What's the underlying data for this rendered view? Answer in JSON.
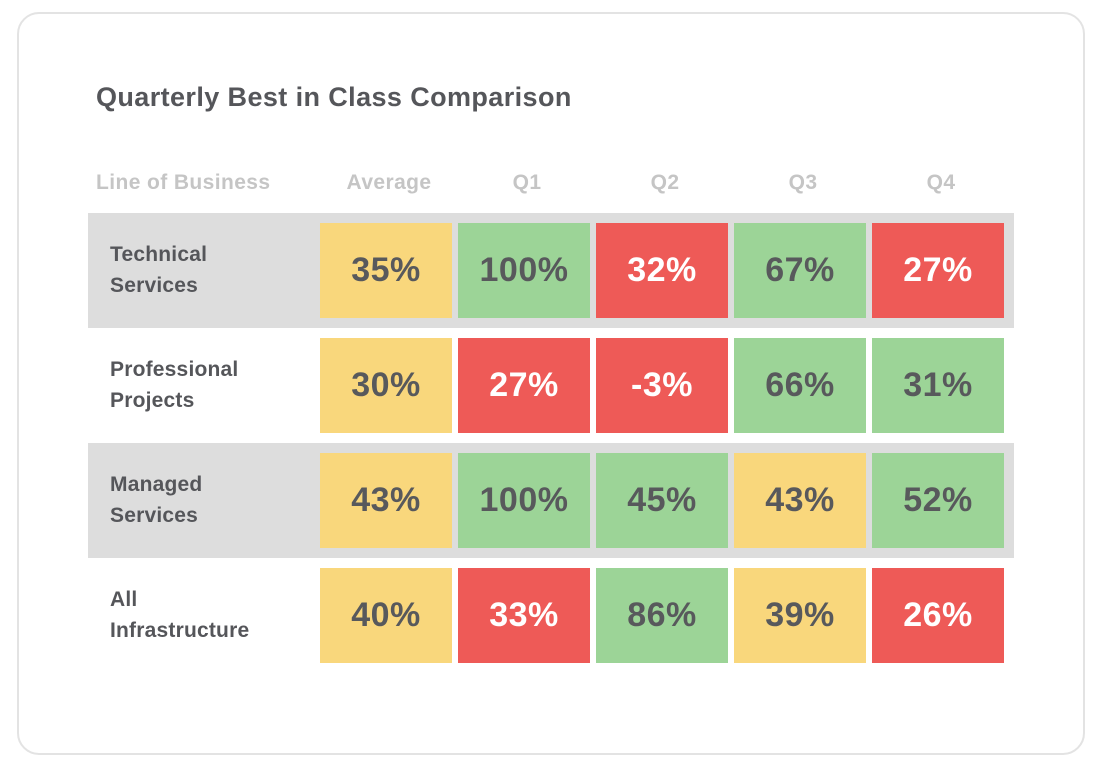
{
  "palette": {
    "yellow": {
      "bg": "#F9D77C",
      "text": "#58595C"
    },
    "green": {
      "bg": "#9CD497",
      "text": "#58595C"
    },
    "red": {
      "bg": "#EE5A57",
      "text": "#FFFFFF"
    },
    "stripe_bg": "#DDDDDD",
    "card_border": "#E3E3E3",
    "title_text": "#55565A",
    "header_text": "#C5C5C5"
  },
  "card": {
    "title": "Quarterly Best in Class Comparison"
  },
  "table": {
    "columns": [
      "Line of Business",
      "Average",
      "Q1",
      "Q2",
      "Q3",
      "Q4"
    ],
    "rows": [
      {
        "label": "Technical\nServices",
        "striped": true,
        "cells": [
          {
            "value": "35%",
            "color": "yellow"
          },
          {
            "value": "100%",
            "color": "green"
          },
          {
            "value": "32%",
            "color": "red"
          },
          {
            "value": "67%",
            "color": "green"
          },
          {
            "value": "27%",
            "color": "red"
          }
        ]
      },
      {
        "label": "Professional\nProjects",
        "striped": false,
        "cells": [
          {
            "value": "30%",
            "color": "yellow"
          },
          {
            "value": "27%",
            "color": "red"
          },
          {
            "value": "-3%",
            "color": "red"
          },
          {
            "value": "66%",
            "color": "green"
          },
          {
            "value": "31%",
            "color": "green"
          }
        ]
      },
      {
        "label": "Managed\nServices",
        "striped": true,
        "cells": [
          {
            "value": "43%",
            "color": "yellow"
          },
          {
            "value": "100%",
            "color": "green"
          },
          {
            "value": "45%",
            "color": "green"
          },
          {
            "value": "43%",
            "color": "yellow"
          },
          {
            "value": "52%",
            "color": "green"
          }
        ]
      },
      {
        "label": "All\nInfrastructure",
        "striped": false,
        "cells": [
          {
            "value": "40%",
            "color": "yellow"
          },
          {
            "value": "33%",
            "color": "red"
          },
          {
            "value": "86%",
            "color": "green"
          },
          {
            "value": "39%",
            "color": "yellow"
          },
          {
            "value": "26%",
            "color": "red"
          }
        ]
      }
    ]
  },
  "chart_data": {
    "type": "heatmap",
    "title": "Quarterly Best in Class Comparison",
    "columns": [
      "Average",
      "Q1",
      "Q2",
      "Q3",
      "Q4"
    ],
    "rows": [
      "Technical Services",
      "Professional Projects",
      "Managed Services",
      "All Infrastructure"
    ],
    "values": [
      [
        35,
        100,
        32,
        67,
        27
      ],
      [
        30,
        27,
        -3,
        66,
        31
      ],
      [
        43,
        100,
        45,
        43,
        52
      ],
      [
        40,
        33,
        86,
        39,
        26
      ]
    ],
    "cell_colors": [
      [
        "yellow",
        "green",
        "red",
        "green",
        "red"
      ],
      [
        "yellow",
        "red",
        "red",
        "green",
        "green"
      ],
      [
        "yellow",
        "green",
        "green",
        "yellow",
        "green"
      ],
      [
        "yellow",
        "red",
        "green",
        "yellow",
        "red"
      ]
    ],
    "unit": "%",
    "legend_position": "none",
    "grid": false
  }
}
